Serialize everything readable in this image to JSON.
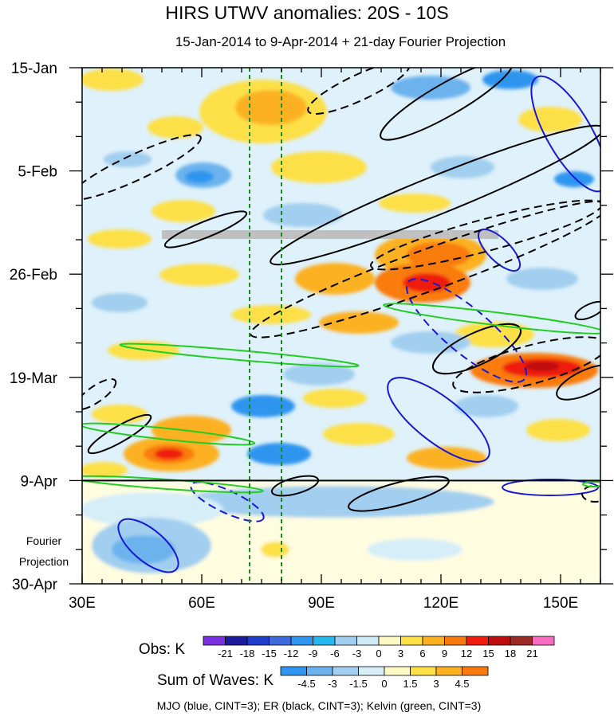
{
  "chart_data": {
    "type": "heatmap",
    "title": "HIRS UTWV anomalies: 20S - 10S",
    "subtitle": "15-Jan-2014 to 9-Apr-2014 + 21-day Fourier Projection",
    "x_axis": {
      "range": [
        30,
        160
      ],
      "ticks": [
        {
          "value": 30,
          "label": "30E"
        },
        {
          "value": 60,
          "label": "60E"
        },
        {
          "value": 90,
          "label": "90E"
        },
        {
          "value": 120,
          "label": "120E"
        },
        {
          "value": 150,
          "label": "150E"
        }
      ]
    },
    "y_axis": {
      "range_days": [
        0,
        105
      ],
      "direction": "down",
      "ticks": [
        {
          "day": 0,
          "label": "15-Jan"
        },
        {
          "day": 21,
          "label": "5-Feb"
        },
        {
          "day": 42,
          "label": "26-Feb"
        },
        {
          "day": 63,
          "label": "19-Mar"
        },
        {
          "day": 84,
          "label": "9-Apr"
        },
        {
          "day": 105,
          "label": "30-Apr"
        }
      ]
    },
    "projection_start_day": 84,
    "projection_label": [
      "Fourier",
      "Projection"
    ],
    "mjo_reference_lines_lon": [
      72,
      80
    ],
    "obs_colorbar": {
      "label": "Obs: K",
      "levels": [
        "-21",
        "-18",
        "-15",
        "-12",
        "-9",
        "-6",
        "-3",
        "0",
        "3",
        "6",
        "9",
        "12",
        "15",
        "18",
        "21"
      ],
      "colors": [
        "#7a2fe0",
        "#1c1c9c",
        "#1f3dc9",
        "#3d6bde",
        "#2f95ef",
        "#24b8ef",
        "#a2cfef",
        "#cfeaf7",
        "#fdf9c4",
        "#fde047",
        "#fcb120",
        "#f97b10",
        "#ef1c0f",
        "#bd0f10",
        "#9c2a26",
        "#f86cc0"
      ]
    },
    "waves_colorbar": {
      "label": "Sum of Waves: K",
      "levels": [
        "-4.5",
        "-3",
        "-1.5",
        "0",
        "1.5",
        "3",
        "4.5"
      ],
      "colors": [
        "#2f95ef",
        "#6cb3ee",
        "#a2cfef",
        "#d6eef8",
        "#fdf9c4",
        "#fde047",
        "#fcb120",
        "#f97b10"
      ]
    },
    "wave_contours": [
      {
        "name": "MJO",
        "color": "#1818d8",
        "cint": 3,
        "features": [
          {
            "lon": 145,
            "day": 7,
            "sign": "positive"
          },
          {
            "lon": 145,
            "day": 36,
            "sign": "positive"
          },
          {
            "lon": 120,
            "day": 50,
            "sign": "negative"
          },
          {
            "lon": 118,
            "day": 70,
            "sign": "positive"
          },
          {
            "lon": 48,
            "day": 97,
            "sign": "positive"
          },
          {
            "lon": 68,
            "day": 88,
            "sign": "negative"
          }
        ]
      },
      {
        "name": "ER",
        "color": "#000000",
        "cint": 3,
        "features": [
          {
            "lon": 130,
            "day": 10,
            "sign": "positive"
          },
          {
            "lon": 120,
            "day": 30,
            "sign": "positive"
          },
          {
            "lon": 45,
            "day": 14,
            "sign": "negative"
          },
          {
            "lon": 110,
            "day": 5,
            "sign": "negative"
          },
          {
            "lon": 115,
            "day": 48,
            "sign": "negative"
          },
          {
            "lon": 140,
            "day": 57,
            "sign": "negative"
          },
          {
            "lon": 65,
            "day": 32,
            "sign": "positive"
          }
        ]
      },
      {
        "name": "Kelvin",
        "color": "#22cc22",
        "cint": 3,
        "features": [
          {
            "lon": 130,
            "day": 51,
            "sign": "positive"
          },
          {
            "lon": 75,
            "day": 59,
            "sign": "positive"
          },
          {
            "lon": 50,
            "day": 77,
            "sign": "positive"
          },
          {
            "lon": 45,
            "day": 85,
            "sign": "positive"
          }
        ]
      }
    ],
    "legend_text": "MJO (blue, CINT=3); ER (black, CINT=3); Kelvin (green, CINT=3)"
  }
}
